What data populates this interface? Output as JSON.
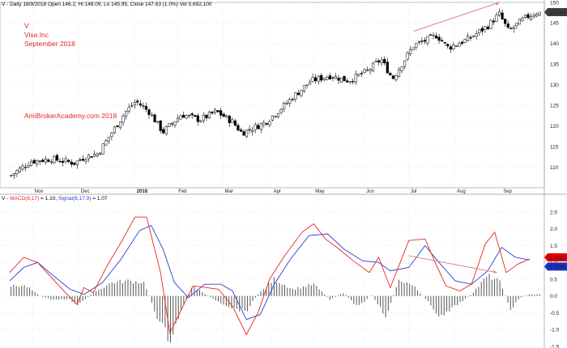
{
  "header": {
    "price_info": "V - Daily 18/9/2018 Open 146.2, Hi 148.09, Lo 145.95, Close 147.63 (1.0%) Vol 5,692,100",
    "symbol": "V",
    "company": "Visa Inc",
    "period": "September 2018",
    "watermark": "AmiBrokerAcademy.com  2018"
  },
  "macd_header": {
    "prefix": "V - ",
    "macd_label": "MACD(8,17)",
    "macd_value": " = 1.10, ",
    "signal_label": "Signal(8,17,9)",
    "signal_value": " = 1.07"
  },
  "badges": {
    "price": "147.63",
    "macd": "1.1015",
    "signal": "1.0689"
  },
  "colors": {
    "candle_up": "#ffffff",
    "candle_down": "#000000",
    "macd_line": "#e8261f",
    "signal_line": "#2c3cd8",
    "histogram": "#555555",
    "trendline": "#e88080",
    "price_badge": "#3d3d3d",
    "macd_badge": "#e00000",
    "signal_badge": "#1a30c8"
  },
  "chart_data": [
    {
      "type": "candlestick",
      "title": "V - Daily 18/9/2018",
      "months": [
        "Nov",
        "Dec",
        "2018",
        "Feb",
        "Mar",
        "Apr",
        "May",
        "Jun",
        "Jul",
        "Aug",
        "Sep"
      ],
      "month_positions": [
        0.5,
        1.5,
        2.7,
        3.6,
        4.6,
        5.65,
        6.55,
        7.65,
        8.6,
        9.6,
        10.6
      ],
      "ylim": [
        105,
        150
      ],
      "yticks": [
        110,
        115,
        120,
        125,
        130,
        135,
        140,
        145,
        150
      ],
      "grid": true,
      "anchors": [
        [
          0,
          107.8
        ],
        [
          0.45,
          111.4
        ],
        [
          0.9,
          112.0
        ],
        [
          1.4,
          111.0
        ],
        [
          1.6,
          112.4
        ],
        [
          1.9,
          113.3
        ],
        [
          2.5,
          123.5
        ],
        [
          2.72,
          126.0
        ],
        [
          3.0,
          123.5
        ],
        [
          3.3,
          118.5
        ],
        [
          3.7,
          122.8
        ],
        [
          4.1,
          121.5
        ],
        [
          4.45,
          123.5
        ],
        [
          4.8,
          121.0
        ],
        [
          5.0,
          118.3
        ],
        [
          5.5,
          120.8
        ],
        [
          5.85,
          124.3
        ],
        [
          6.1,
          127.0
        ],
        [
          6.5,
          131.0
        ],
        [
          6.9,
          132.2
        ],
        [
          7.3,
          131.0
        ],
        [
          7.7,
          133.3
        ],
        [
          8.0,
          136.2
        ],
        [
          8.25,
          131.5
        ],
        [
          8.7,
          139.5
        ],
        [
          9.2,
          142.0
        ],
        [
          9.45,
          139.0
        ],
        [
          9.9,
          141.2
        ],
        [
          10.3,
          144.3
        ],
        [
          10.55,
          147.2
        ],
        [
          10.75,
          143.0
        ],
        [
          11.1,
          146.2
        ],
        [
          11.35,
          147.6
        ]
      ],
      "last_close": 147.63,
      "annotations": [
        {
          "type": "trendline",
          "from": [
            8.7,
            143.0
          ],
          "to": [
            10.55,
            150.0
          ]
        }
      ]
    },
    {
      "type": "line",
      "title": "MACD(8,17) Signal(8,17,9)",
      "ylim": [
        -1.5,
        2.5
      ],
      "yticks": [
        -1.5,
        -1.0,
        -0.5,
        0.0,
        0.5,
        1.0,
        1.5,
        2.0,
        2.5
      ],
      "grid": true,
      "series": [
        {
          "name": "MACD(8,17)",
          "points": [
            [
              0,
              0.7
            ],
            [
              0.3,
              1.15
            ],
            [
              0.6,
              1.0
            ],
            [
              0.9,
              0.55
            ],
            [
              1.2,
              0.1
            ],
            [
              1.45,
              -0.25
            ],
            [
              1.6,
              0.25
            ],
            [
              1.8,
              0.1
            ],
            [
              2.1,
              0.9
            ],
            [
              2.4,
              1.6
            ],
            [
              2.7,
              2.35
            ],
            [
              2.95,
              2.35
            ],
            [
              3.25,
              0.7
            ],
            [
              3.45,
              -1.1
            ],
            [
              3.7,
              -0.4
            ],
            [
              3.95,
              0.3
            ],
            [
              4.25,
              0.25
            ],
            [
              4.5,
              0.2
            ],
            [
              4.8,
              -0.3
            ],
            [
              5.1,
              -1.15
            ],
            [
              5.35,
              -0.5
            ],
            [
              5.6,
              0.5
            ],
            [
              5.9,
              1.15
            ],
            [
              6.3,
              1.9
            ],
            [
              6.55,
              2.15
            ],
            [
              6.8,
              1.7
            ],
            [
              7.05,
              1.45
            ],
            [
              7.4,
              1.05
            ],
            [
              7.75,
              0.7
            ],
            [
              7.95,
              1.15
            ],
            [
              8.2,
              0.25
            ],
            [
              8.6,
              1.65
            ],
            [
              8.95,
              1.7
            ],
            [
              9.2,
              0.9
            ],
            [
              9.4,
              0.3
            ],
            [
              9.7,
              0.15
            ],
            [
              9.95,
              0.35
            ],
            [
              10.25,
              1.55
            ],
            [
              10.45,
              1.9
            ],
            [
              10.7,
              0.7
            ],
            [
              10.95,
              0.95
            ],
            [
              11.2,
              1.1
            ]
          ]
        },
        {
          "name": "Signal(8,17,9)",
          "points": [
            [
              0,
              0.45
            ],
            [
              0.3,
              0.85
            ],
            [
              0.6,
              1.0
            ],
            [
              0.9,
              0.65
            ],
            [
              1.3,
              0.2
            ],
            [
              1.6,
              0.05
            ],
            [
              2.0,
              0.4
            ],
            [
              2.4,
              1.1
            ],
            [
              2.8,
              1.95
            ],
            [
              3.05,
              2.1
            ],
            [
              3.3,
              1.4
            ],
            [
              3.55,
              0.4
            ],
            [
              3.85,
              -0.05
            ],
            [
              4.2,
              0.35
            ],
            [
              4.55,
              0.35
            ],
            [
              4.8,
              0.15
            ],
            [
              5.1,
              -0.7
            ],
            [
              5.4,
              -0.55
            ],
            [
              5.7,
              0.35
            ],
            [
              6.05,
              1.1
            ],
            [
              6.45,
              1.8
            ],
            [
              6.85,
              1.85
            ],
            [
              7.2,
              1.4
            ],
            [
              7.6,
              1.05
            ],
            [
              7.95,
              1.0
            ],
            [
              8.2,
              0.75
            ],
            [
              8.6,
              0.85
            ],
            [
              8.95,
              1.5
            ],
            [
              9.25,
              1.0
            ],
            [
              9.6,
              0.45
            ],
            [
              9.95,
              0.35
            ],
            [
              10.3,
              0.75
            ],
            [
              10.6,
              1.45
            ],
            [
              10.9,
              1.15
            ],
            [
              11.2,
              1.07
            ]
          ]
        },
        {
          "name": "MACD Histogram",
          "points": [
            [
              0,
              0.3
            ],
            [
              0.35,
              0.3
            ],
            [
              0.65,
              0.0
            ],
            [
              0.9,
              -0.1
            ],
            [
              1.3,
              -0.1
            ],
            [
              1.45,
              -0.3
            ],
            [
              1.8,
              0.1
            ],
            [
              2.2,
              0.4
            ],
            [
              2.55,
              0.45
            ],
            [
              2.9,
              0.4
            ],
            [
              3.2,
              -0.7
            ],
            [
              3.45,
              -1.3
            ],
            [
              3.7,
              -0.4
            ],
            [
              3.95,
              0.3
            ],
            [
              4.4,
              -0.1
            ],
            [
              4.8,
              -0.35
            ],
            [
              5.1,
              -0.45
            ],
            [
              5.35,
              0.05
            ],
            [
              5.7,
              0.5
            ],
            [
              6.1,
              0.2
            ],
            [
              6.55,
              0.35
            ],
            [
              6.9,
              -0.1
            ],
            [
              7.2,
              0.1
            ],
            [
              7.5,
              -0.35
            ],
            [
              7.8,
              0.05
            ],
            [
              8.1,
              -0.6
            ],
            [
              8.4,
              0.5
            ],
            [
              8.7,
              0.3
            ],
            [
              9.0,
              -0.15
            ],
            [
              9.3,
              -0.65
            ],
            [
              9.6,
              -0.3
            ],
            [
              9.95,
              0.05
            ],
            [
              10.3,
              0.6
            ],
            [
              10.55,
              0.45
            ],
            [
              10.8,
              -0.4
            ],
            [
              11.0,
              -0.05
            ],
            [
              11.2,
              0.05
            ]
          ]
        }
      ],
      "annotations": [
        {
          "type": "trendline",
          "from": [
            8.6,
            1.2
          ],
          "to": [
            10.5,
            0.7
          ]
        }
      ]
    }
  ]
}
